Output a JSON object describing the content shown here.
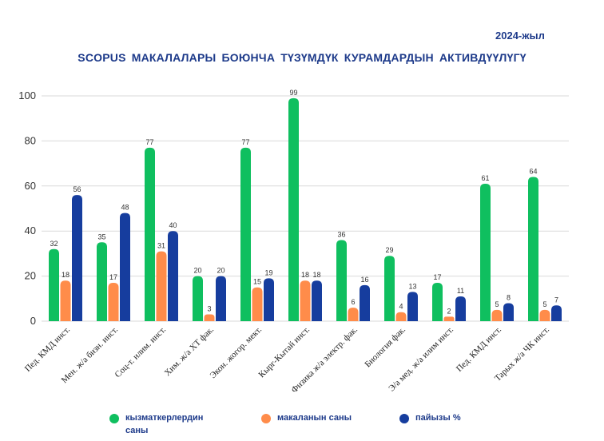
{
  "header": {
    "year": "2024-жыл",
    "title": "SCOPUS МАКАЛАЛАРЫ БОЮНЧА ТҮЗҮМДҮК КУРАМДАРДЫН АКТИВДҮҮЛҮГҮ"
  },
  "legend": [
    {
      "label": "кызматкерлердин саны",
      "color": "#0fbf5f"
    },
    {
      "label": "макаланын саны",
      "color": "#ff8c4a"
    },
    {
      "label": "пайызы %",
      "color": "#163d9e"
    }
  ],
  "chart_data": {
    "type": "bar",
    "title": "SCOPUS МАКАЛАЛАРЫ БОЮНЧА ТҮЗҮМДҮК КУРАМДАРДЫН АКТИВДҮҮЛҮГҮ",
    "xlabel": "",
    "ylabel": "",
    "ylim": [
      0,
      100
    ],
    "yticks": [
      0,
      20,
      40,
      60,
      80,
      100
    ],
    "grid": true,
    "legend_position": "bottom",
    "categories": [
      "Пед. КМД инст.",
      "Мен. ж/а бизн. инст.",
      "Соц-т. илим. инст.",
      "Хим. ж/а ХТ фак.",
      "Экон. жогор. мект.",
      "Кырг-Кытай инст.",
      "Физика ж/а электр. фак.",
      "Биология фак.",
      "Э/а мед. ж/а илим инст.",
      "Пед. КМД инст.",
      "Тарых ж/а ЧК инст."
    ],
    "series": [
      {
        "name": "кызматкерлердин саны",
        "color": "#0fbf5f",
        "values": [
          32,
          35,
          77,
          20,
          77,
          99,
          36,
          29,
          17,
          61,
          64
        ]
      },
      {
        "name": "макаланын саны",
        "color": "#ff8c4a",
        "values": [
          18,
          17,
          31,
          3,
          15,
          18,
          6,
          4,
          2,
          5,
          5
        ]
      },
      {
        "name": "пайызы %",
        "color": "#163d9e",
        "values": [
          56,
          48,
          40,
          20,
          19,
          18,
          16,
          13,
          11,
          8,
          7
        ]
      }
    ]
  }
}
